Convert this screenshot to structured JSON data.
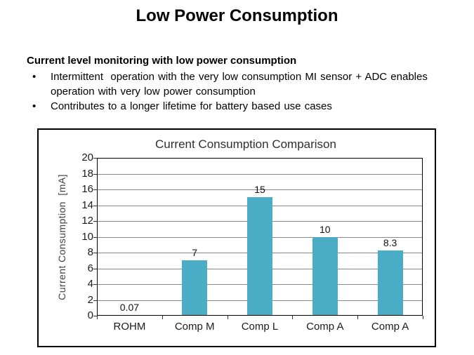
{
  "page": {
    "title": "Low Power Consumption",
    "section_heading": "Current level monitoring with low power consumption",
    "bullet_char": "•",
    "bullets": [
      "Intermittent  operation with the very low consumption MI sensor + ADC enables operation with very low power consumption",
      "Contributes to a longer lifetime for battery based use cases"
    ]
  },
  "chart_data": {
    "type": "bar",
    "title": "Current Consumption Comparison",
    "categories": [
      "ROHM",
      "Comp M",
      "Comp L",
      "Comp A",
      "Comp A"
    ],
    "values": [
      0.07,
      7,
      15,
      10,
      8.3
    ],
    "data_labels": [
      "0.07",
      "7",
      "15",
      "10",
      "8.3"
    ],
    "xlabel": "",
    "ylabel": "Current Consumption  [mA]",
    "ylim": [
      0,
      20
    ],
    "ytick_step": 2,
    "grid": true,
    "legend_position": "none",
    "bar_color": "#4BACC6"
  }
}
